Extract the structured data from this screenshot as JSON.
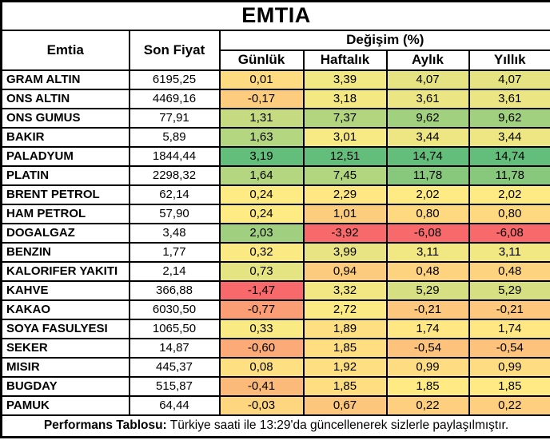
{
  "title": "EMTIA",
  "header": {
    "emtia": "Emtia",
    "son_fiyat": "Son Fiyat",
    "degisim": "Değişim (%)",
    "sub": [
      "Günlük",
      "Haftalık",
      "Aylık",
      "Yıllık"
    ]
  },
  "footer": {
    "label_bold": "Performans Tablosu:",
    "text": " Türkiye saati ile 13:29'da güncellenerek sizlerle paylaşılmıştır."
  },
  "colors": {
    "scale_min_red": "#F8696B",
    "scale_mid_yellow": "#FFEB84",
    "scale_max_green": "#63BE7B",
    "border": "#000000",
    "background": "#FFFFFF",
    "text": "#000000"
  },
  "chart_data": {
    "type": "table",
    "title": "EMTIA",
    "columns": [
      "Emtia",
      "Son Fiyat",
      "Günlük",
      "Haftalık",
      "Aylık",
      "Yıllık"
    ],
    "number_format": "comma-decimal, 2 digits",
    "color_scale": "per-column 3-color scale, min=red mid(median)=yellow max=green",
    "rows": [
      {
        "name": "GRAM ALTIN",
        "price": 6195.25,
        "changes": [
          0.01,
          3.39,
          4.07,
          4.07
        ]
      },
      {
        "name": "ONS ALTIN",
        "price": 4469.16,
        "changes": [
          -0.17,
          3.18,
          3.61,
          3.61
        ]
      },
      {
        "name": "ONS GUMUS",
        "price": 77.91,
        "changes": [
          1.31,
          7.37,
          9.62,
          9.62
        ]
      },
      {
        "name": "BAKIR",
        "price": 5.89,
        "changes": [
          1.63,
          3.01,
          3.44,
          3.44
        ]
      },
      {
        "name": "PALADYUM",
        "price": 1844.44,
        "changes": [
          3.19,
          12.51,
          14.74,
          14.74
        ]
      },
      {
        "name": "PLATIN",
        "price": 2298.32,
        "changes": [
          1.64,
          7.45,
          11.78,
          11.78
        ]
      },
      {
        "name": "BRENT PETROL",
        "price": 62.14,
        "changes": [
          0.24,
          2.29,
          2.02,
          2.02
        ]
      },
      {
        "name": "HAM PETROL",
        "price": 57.9,
        "changes": [
          0.24,
          1.01,
          0.8,
          0.8
        ]
      },
      {
        "name": "DOGALGAZ",
        "price": 3.48,
        "changes": [
          2.03,
          -3.92,
          -6.08,
          -6.08
        ]
      },
      {
        "name": "BENZIN",
        "price": 1.77,
        "changes": [
          0.32,
          3.99,
          3.11,
          3.11
        ]
      },
      {
        "name": "KALORIFER YAKITI",
        "price": 2.14,
        "changes": [
          0.73,
          0.94,
          0.48,
          0.48
        ]
      },
      {
        "name": "KAHVE",
        "price": 366.88,
        "changes": [
          -1.47,
          3.32,
          5.29,
          5.29
        ]
      },
      {
        "name": "KAKAO",
        "price": 6030.5,
        "changes": [
          -0.77,
          2.72,
          -0.21,
          -0.21
        ]
      },
      {
        "name": "SOYA FASULYESI",
        "price": 1065.5,
        "changes": [
          0.33,
          1.89,
          1.74,
          1.74
        ]
      },
      {
        "name": "SEKER",
        "price": 14.87,
        "changes": [
          -0.6,
          1.85,
          -0.54,
          -0.54
        ]
      },
      {
        "name": "MISIR",
        "price": 445.37,
        "changes": [
          0.08,
          1.92,
          0.99,
          0.99
        ]
      },
      {
        "name": "BUGDAY",
        "price": 515.87,
        "changes": [
          -0.41,
          1.85,
          1.85,
          1.85
        ]
      },
      {
        "name": "PAMUK",
        "price": 64.44,
        "changes": [
          -0.03,
          0.67,
          0.22,
          0.22
        ]
      }
    ]
  }
}
